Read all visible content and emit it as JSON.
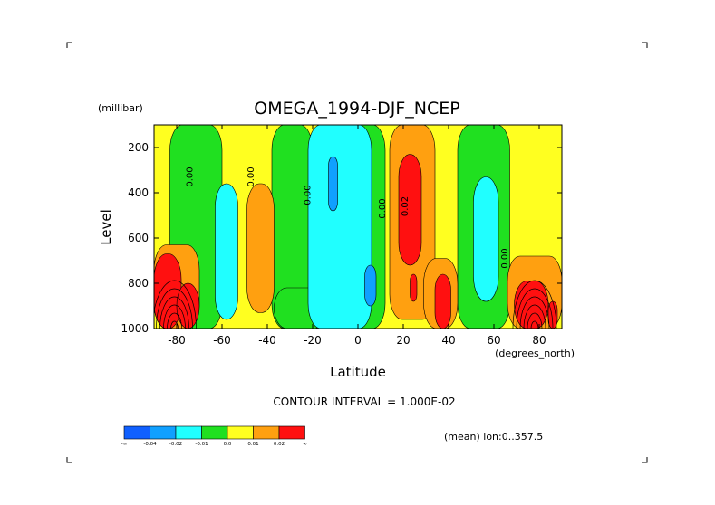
{
  "chart_data": {
    "type": "heatmap",
    "title": "OMEGA_1994-DJF_NCEP",
    "xlabel": "Latitude",
    "x_units": "(degrees_north)",
    "ylabel": "Level",
    "y_units": "(millibar)",
    "x_range": [
      -90,
      90
    ],
    "y_range": [
      1000,
      100
    ],
    "x_ticks": [
      "-80",
      "-60",
      "-40",
      "-20",
      "0",
      "20",
      "40",
      "60",
      "80"
    ],
    "x_tick_values": [
      -80,
      -60,
      -40,
      -20,
      0,
      20,
      40,
      60,
      80
    ],
    "y_ticks": [
      "200",
      "400",
      "600",
      "800",
      "1000"
    ],
    "y_tick_values": [
      200,
      400,
      600,
      800,
      1000
    ],
    "contour_interval_text": "CONTOUR INTERVAL = 1.000E-02",
    "footer_note": "(mean) lon:0..357.5",
    "contour_labels": [
      {
        "text": "0.00",
        "lat": -73,
        "level": 330
      },
      {
        "text": "0.00",
        "lat": -46,
        "level": 330
      },
      {
        "text": "0.00",
        "lat": -21,
        "level": 410
      },
      {
        "text": "0.00",
        "lat": 12,
        "level": 470
      },
      {
        "text": "0.02",
        "lat": 22,
        "level": 460
      },
      {
        "text": "0.00",
        "lat": 66,
        "level": 690
      }
    ],
    "colorbar": {
      "colors": [
        "#1060ff",
        "#10a0ff",
        "#20ffff",
        "#20e020",
        "#ffff20",
        "#ffa010",
        "#ff1010"
      ],
      "labels": [
        "-∞",
        "-0.04",
        "-0.02",
        "-0.01",
        "0.0",
        "0.01",
        "0.02",
        "∞"
      ]
    },
    "bands": [
      {
        "color_index": 3,
        "lat": [
          -83,
          -60
        ],
        "level": [
          100,
          1000
        ]
      },
      {
        "color_index": 3,
        "lat": [
          -38,
          -20
        ],
        "level": [
          100,
          1000
        ]
      },
      {
        "color_index": 3,
        "lat": [
          -4,
          12
        ],
        "level": [
          100,
          1000
        ]
      },
      {
        "color_index": 3,
        "lat": [
          44,
          67
        ],
        "level": [
          100,
          1000
        ]
      },
      {
        "color_index": 3,
        "lat": [
          -37,
          -14
        ],
        "level": [
          820,
          1000
        ]
      },
      {
        "color_index": 2,
        "lat": [
          -22,
          6
        ],
        "level": [
          100,
          1000
        ]
      },
      {
        "color_index": 1,
        "lat": [
          -13,
          -9
        ],
        "level": [
          240,
          480
        ]
      },
      {
        "color_index": 1,
        "lat": [
          3,
          8
        ],
        "level": [
          720,
          900
        ]
      },
      {
        "color_index": 2,
        "lat": [
          -63,
          -53
        ],
        "level": [
          360,
          960
        ]
      },
      {
        "color_index": 2,
        "lat": [
          51,
          62
        ],
        "level": [
          330,
          880
        ]
      },
      {
        "color_index": 5,
        "lat": [
          -49,
          -37
        ],
        "level": [
          360,
          930
        ]
      },
      {
        "color_index": 5,
        "lat": [
          14,
          34
        ],
        "level": [
          100,
          960
        ]
      },
      {
        "color_index": 5,
        "lat": [
          29,
          44
        ],
        "level": [
          690,
          1000
        ]
      },
      {
        "color_index": 5,
        "lat": [
          -90,
          -70
        ],
        "level": [
          630,
          1000
        ]
      },
      {
        "color_index": 5,
        "lat": [
          66,
          90
        ],
        "level": [
          680,
          1000
        ]
      },
      {
        "color_index": 6,
        "lat": [
          18,
          28
        ],
        "level": [
          230,
          720
        ]
      },
      {
        "color_index": 6,
        "lat": [
          23,
          26
        ],
        "level": [
          760,
          880
        ]
      },
      {
        "color_index": 6,
        "lat": [
          34,
          41
        ],
        "level": [
          760,
          1000
        ]
      },
      {
        "color_index": 6,
        "lat": [
          -90,
          -78
        ],
        "level": [
          670,
          1000
        ]
      },
      {
        "color_index": 6,
        "lat": [
          -80,
          -70
        ],
        "level": [
          800,
          1000
        ]
      },
      {
        "color_index": 6,
        "lat": [
          69,
          84
        ],
        "level": [
          790,
          1000
        ]
      },
      {
        "color_index": 6,
        "lat": [
          84,
          88
        ],
        "level": [
          880,
          1000
        ]
      }
    ]
  }
}
